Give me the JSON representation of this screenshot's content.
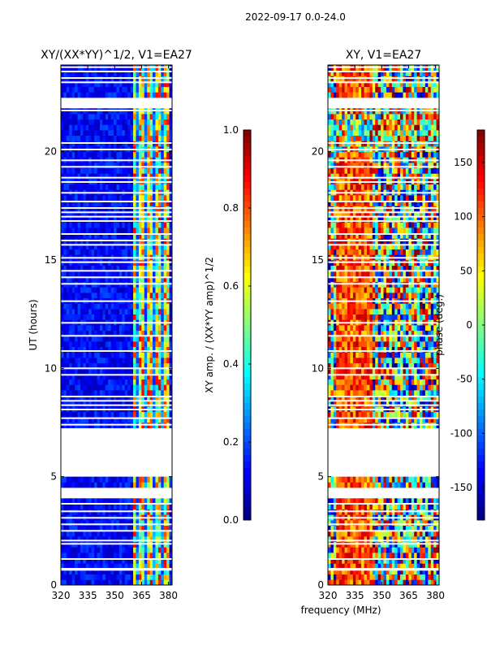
{
  "suptitle": "2022-09-17 0.0-24.0",
  "chart_data": [
    {
      "type": "heatmap",
      "title": "XY/(XX*YY)^1/2, V1=EA27",
      "xlabel": "",
      "ylabel": "UT (hours)",
      "xlim": [
        320,
        382
      ],
      "ylim": [
        0,
        24
      ],
      "xticks": [
        "320",
        "335",
        "350",
        "365",
        "380"
      ],
      "yticks": [
        "0",
        "5",
        "10",
        "15",
        "20"
      ],
      "colorbar": {
        "label": "XY amp. / (XX*YY amp)^1/2",
        "range": [
          0.0,
          1.0
        ],
        "ticks": [
          "0.0",
          "0.2",
          "0.4",
          "0.6",
          "0.8",
          "1.0"
        ]
      },
      "gaps_hours": [
        [
          4.0,
          4.5
        ],
        [
          5.0,
          7.2
        ],
        [
          22.0,
          22.6
        ]
      ]
    },
    {
      "type": "heatmap",
      "title": "XY, V1=EA27",
      "xlabel": "frequency (MHz)",
      "ylabel": "",
      "xlim": [
        320,
        382
      ],
      "ylim": [
        0,
        24
      ],
      "xticks": [
        "320",
        "335",
        "350",
        "365",
        "380"
      ],
      "yticks": [
        "0",
        "5",
        "10",
        "15",
        "20"
      ],
      "colorbar": {
        "label": "phase (deg.)",
        "range": [
          -180,
          180
        ],
        "ticks": [
          "-150",
          "-100",
          "-50",
          "0",
          "50",
          "100",
          "150"
        ]
      },
      "gaps_hours": [
        [
          4.0,
          4.5
        ],
        [
          5.0,
          7.2
        ],
        [
          22.0,
          22.6
        ]
      ]
    }
  ]
}
